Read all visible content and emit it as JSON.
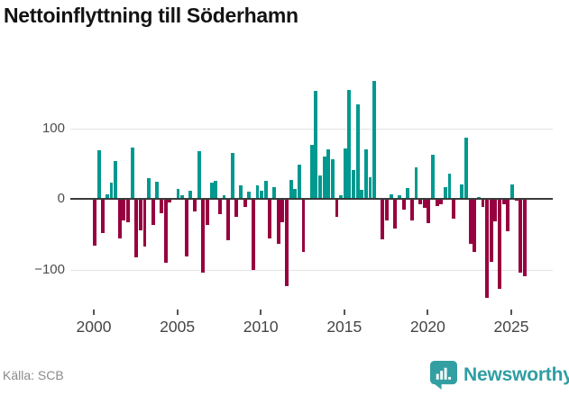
{
  "title": "Nettoinflyttning till Söderhamn",
  "footer": {
    "source": "Källa: SCB",
    "brand": "Newsworthy"
  },
  "colors": {
    "positive": "#00998F",
    "negative": "#970140",
    "brand_teal": "#339FA3",
    "axis_line": "#3A3A3A",
    "gridline": "#E3E3E3"
  },
  "chart_data": {
    "type": "bar",
    "title": "Nettoinflyttning till Söderhamn",
    "frequency": "quarterly",
    "xlabel": "",
    "ylabel": "",
    "ylim": [
      -150,
      180
    ],
    "grid": "horizontal",
    "legend": "none",
    "ytick_values": [
      100,
      0,
      -100
    ],
    "ytick_labels": [
      "100",
      "0",
      "−100"
    ],
    "xtick_values": [
      2000,
      2005,
      2010,
      2015,
      2020,
      2025
    ],
    "xtick_labels": [
      "2000",
      "2005",
      "2010",
      "2015",
      "2020",
      "2025"
    ],
    "categories": [
      "2000Q1",
      "2000Q2",
      "2000Q3",
      "2000Q4",
      "2001Q1",
      "2001Q2",
      "2001Q3",
      "2001Q4",
      "2002Q1",
      "2002Q2",
      "2002Q3",
      "2002Q4",
      "2003Q1",
      "2003Q2",
      "2003Q3",
      "2003Q4",
      "2004Q1",
      "2004Q2",
      "2004Q3",
      "2004Q4",
      "2005Q1",
      "2005Q2",
      "2005Q3",
      "2005Q4",
      "2006Q1",
      "2006Q2",
      "2006Q3",
      "2006Q4",
      "2007Q1",
      "2007Q2",
      "2007Q3",
      "2007Q4",
      "2008Q1",
      "2008Q2",
      "2008Q3",
      "2008Q4",
      "2009Q1",
      "2009Q2",
      "2009Q3",
      "2009Q4",
      "2010Q1",
      "2010Q2",
      "2010Q3",
      "2010Q4",
      "2011Q1",
      "2011Q2",
      "2011Q3",
      "2011Q4",
      "2012Q1",
      "2012Q2",
      "2012Q3",
      "2012Q4",
      "2013Q1",
      "2013Q2",
      "2013Q3",
      "2013Q4",
      "2014Q1",
      "2014Q2",
      "2014Q3",
      "2014Q4",
      "2015Q1",
      "2015Q2",
      "2015Q3",
      "2015Q4",
      "2016Q1",
      "2016Q2",
      "2016Q3",
      "2016Q4",
      "2017Q1",
      "2017Q2",
      "2017Q3",
      "2017Q4",
      "2018Q1",
      "2018Q2",
      "2018Q3",
      "2018Q4",
      "2019Q1",
      "2019Q2",
      "2019Q3",
      "2019Q4",
      "2020Q1",
      "2020Q2",
      "2020Q3",
      "2020Q4",
      "2021Q1",
      "2021Q2",
      "2021Q3",
      "2021Q4",
      "2022Q1",
      "2022Q2",
      "2022Q3",
      "2022Q4",
      "2023Q1",
      "2023Q2",
      "2023Q3",
      "2023Q4",
      "2024Q1",
      "2024Q2",
      "2024Q3",
      "2024Q4",
      "2025Q1",
      "2025Q2",
      "2025Q3",
      "2025Q4"
    ],
    "values": [
      -66,
      69,
      -49,
      6,
      23,
      54,
      -56,
      -30,
      -33,
      72,
      -83,
      -45,
      -68,
      29,
      -37,
      24,
      -21,
      -91,
      -5,
      0,
      14,
      5,
      -81,
      12,
      -18,
      68,
      -104,
      -37,
      23,
      26,
      -22,
      5,
      -59,
      65,
      -26,
      19,
      -11,
      10,
      -100,
      19,
      12,
      26,
      -56,
      17,
      -64,
      -33,
      -123,
      27,
      14,
      48,
      -75,
      0,
      77,
      153,
      33,
      60,
      70,
      56,
      -26,
      5,
      71,
      154,
      41,
      134,
      13,
      70,
      30,
      167,
      0,
      -57,
      -30,
      6,
      -42,
      5,
      -15,
      15,
      -30,
      44,
      -8,
      -13,
      -35,
      62,
      -10,
      -8,
      16,
      36,
      -28,
      0,
      20,
      86,
      -64,
      -75,
      2,
      -11,
      -140,
      -89,
      -32,
      -127,
      -8,
      -46,
      20,
      -3,
      -104,
      -110
    ]
  }
}
